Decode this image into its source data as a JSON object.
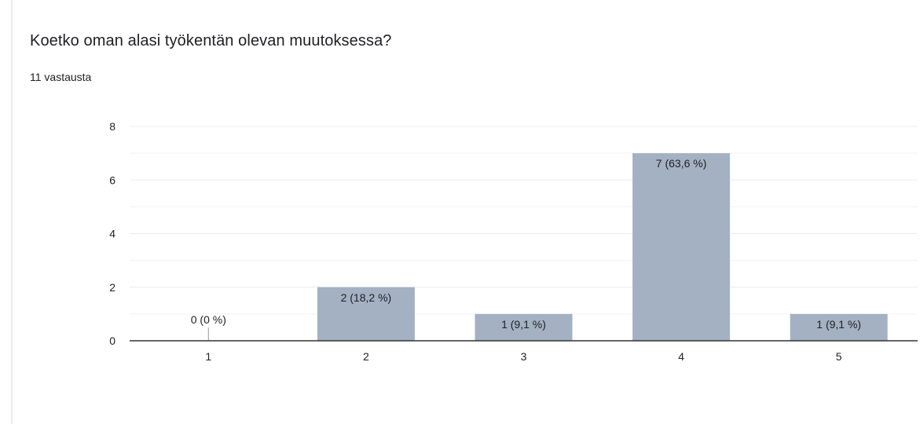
{
  "question": {
    "title": "Koetko oman alasi työkentän olevan muutoksessa?",
    "response_count": "11 vastausta"
  },
  "colors": {
    "bar": "#a3b1c2",
    "grid": "#ececec",
    "baseline": "#333333",
    "text": "#202124"
  },
  "chart_data": {
    "type": "bar",
    "categories": [
      "1",
      "2",
      "3",
      "4",
      "5"
    ],
    "values": [
      0,
      2,
      1,
      7,
      1
    ],
    "data_labels": [
      "0 (0 %)",
      "2 (18,2 %)",
      "1 (9,1 %)",
      "7 (63,6 %)",
      "1 (9,1 %)"
    ],
    "y_ticks": [
      0,
      2,
      4,
      6,
      8
    ],
    "ylim": [
      0,
      8
    ],
    "title": "",
    "xlabel": "",
    "ylabel": "",
    "grid": true,
    "legend": "none"
  }
}
